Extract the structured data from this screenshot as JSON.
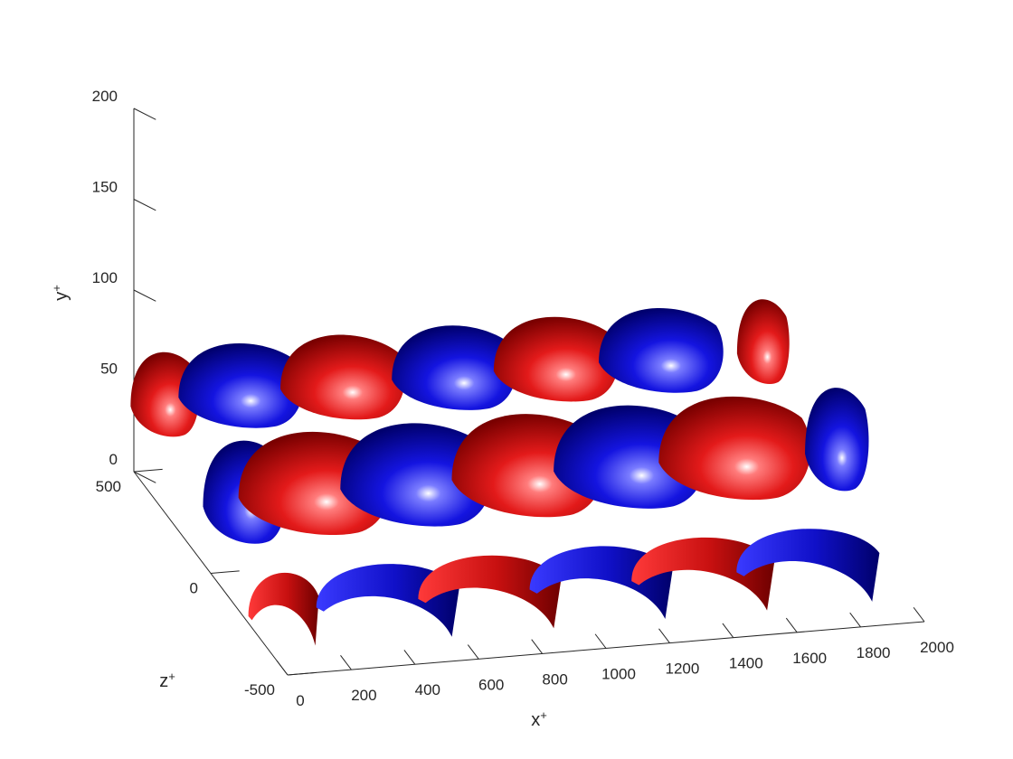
{
  "chart_data": {
    "type": "isosurface",
    "xlabel": "x",
    "ylabel": "y",
    "zlabel": "z",
    "axis_superscript": "+",
    "xlim": [
      0,
      2000
    ],
    "ylim": [
      0,
      200
    ],
    "zlim": [
      -500,
      500
    ],
    "x_ticks": [
      "0",
      "200",
      "400",
      "600",
      "800",
      "1000",
      "1200",
      "1400",
      "1600",
      "1800",
      "2000"
    ],
    "y_ticks": [
      "0",
      "50",
      "100",
      "150",
      "200"
    ],
    "z_ticks": [
      "-500",
      "0",
      "500"
    ],
    "grid": false,
    "colors": {
      "positive": "#e31a1a",
      "negative": "#1414e0"
    },
    "series": [
      {
        "sign": "positive",
        "blobs": [
          {
            "x": 0,
            "z": 480
          },
          {
            "x": 650,
            "z": 480
          },
          {
            "x": 1320,
            "z": 480
          },
          {
            "x": 1980,
            "z": 480
          },
          {
            "x": 330,
            "z": 0
          },
          {
            "x": 1000,
            "z": 0
          },
          {
            "x": 1650,
            "z": 0
          },
          {
            "x": 0,
            "z": -480
          },
          {
            "x": 650,
            "z": -480
          },
          {
            "x": 1320,
            "z": -480
          }
        ]
      },
      {
        "sign": "negative",
        "blobs": [
          {
            "x": 330,
            "z": 480
          },
          {
            "x": 1000,
            "z": 480
          },
          {
            "x": 1650,
            "z": 480
          },
          {
            "x": 0,
            "z": 0
          },
          {
            "x": 650,
            "z": 0
          },
          {
            "x": 1320,
            "z": 0
          },
          {
            "x": 1980,
            "z": 0
          },
          {
            "x": 330,
            "z": -480
          },
          {
            "x": 1000,
            "z": -480
          },
          {
            "x": 1650,
            "z": -480
          }
        ]
      }
    ]
  }
}
